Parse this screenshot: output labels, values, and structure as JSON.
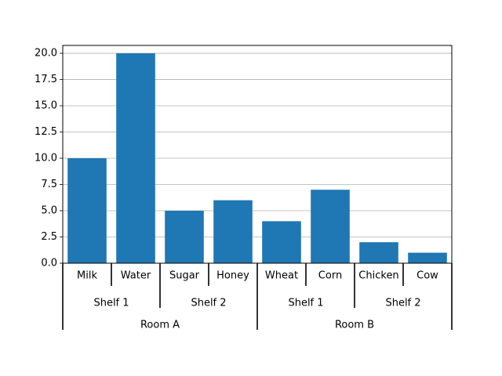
{
  "chart_data": {
    "type": "bar",
    "title": "",
    "xlabel": "",
    "ylabel": "",
    "categories": [
      "Milk",
      "Water",
      "Sugar",
      "Honey",
      "Wheat",
      "Corn",
      "Chicken",
      "Cow"
    ],
    "values": [
      10,
      20,
      5,
      6,
      4,
      7,
      2,
      1
    ],
    "ylim": [
      0,
      20.75
    ],
    "yticks": [
      "0.0",
      "2.5",
      "5.0",
      "7.5",
      "10.0",
      "12.5",
      "15.0",
      "17.5",
      "20.0"
    ],
    "grid": "horizontal",
    "bar_color": "#1f77b4",
    "groups_level1": [
      {
        "label": "Shelf 1",
        "span": 2
      },
      {
        "label": "Shelf 2",
        "span": 2
      },
      {
        "label": "Shelf 1",
        "span": 2
      },
      {
        "label": "Shelf 2",
        "span": 2
      }
    ],
    "groups_level2": [
      {
        "label": "Room A",
        "span": 4
      },
      {
        "label": "Room B",
        "span": 4
      }
    ]
  }
}
